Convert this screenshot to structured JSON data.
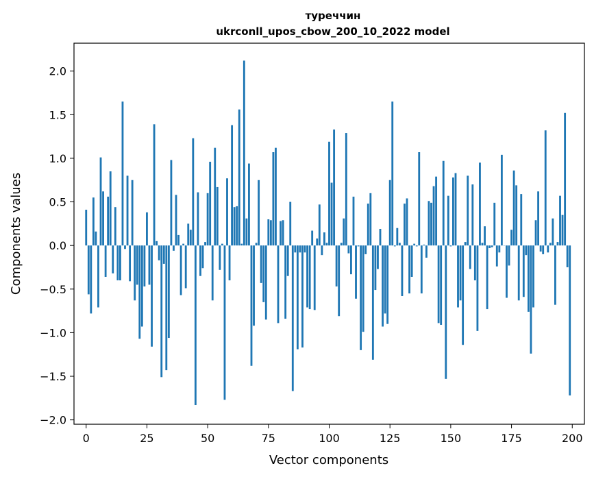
{
  "chart_data": {
    "type": "bar",
    "title": "туреччин",
    "subtitle": "ukrconll_upos_cbow_200_10_2022 model",
    "xlabel": "Vector components",
    "ylabel": "Components values",
    "xlim": [
      -5,
      205
    ],
    "ylim": [
      -2.05,
      2.32
    ],
    "xticks": [
      0,
      25,
      50,
      75,
      100,
      125,
      150,
      175,
      200
    ],
    "yticks": [
      -2.0,
      -1.5,
      -1.0,
      -0.5,
      0.0,
      0.5,
      1.0,
      1.5,
      2.0
    ],
    "ytick_labels": [
      "−2.0",
      "−1.5",
      "−1.0",
      "−0.5",
      "0.0",
      "0.5",
      "1.0",
      "1.5",
      "2.0"
    ],
    "bar_color": "#1f77b4",
    "values": [
      0.41,
      -0.56,
      -0.78,
      0.55,
      0.16,
      -0.71,
      1.01,
      0.62,
      -0.36,
      0.56,
      0.85,
      -0.32,
      0.44,
      -0.4,
      -0.4,
      1.65,
      -0.04,
      0.8,
      -0.41,
      0.75,
      -0.63,
      -0.45,
      -1.07,
      -0.93,
      -0.47,
      0.38,
      -0.45,
      -1.16,
      1.39,
      0.05,
      -0.17,
      -1.51,
      -0.21,
      -1.43,
      -1.06,
      0.98,
      -0.06,
      0.58,
      0.12,
      -0.57,
      0.02,
      -0.49,
      0.25,
      0.18,
      1.23,
      -1.83,
      0.61,
      -0.35,
      -0.26,
      0.04,
      0.6,
      0.96,
      -0.63,
      1.12,
      0.67,
      -0.28,
      0.02,
      -1.77,
      0.77,
      -0.4,
      1.38,
      0.44,
      0.45,
      1.56,
      0.02,
      2.12,
      0.31,
      0.94,
      -1.38,
      -0.92,
      0.03,
      0.75,
      -0.43,
      -0.65,
      -0.85,
      0.3,
      0.29,
      1.07,
      1.12,
      -0.89,
      0.28,
      0.29,
      -0.84,
      -0.35,
      0.5,
      -1.67,
      -0.08,
      -1.19,
      -0.08,
      -1.17,
      -0.08,
      -0.71,
      -0.73,
      0.17,
      -0.74,
      0.08,
      0.47,
      -0.11,
      0.15,
      0.03,
      1.19,
      0.72,
      1.33,
      -0.47,
      -0.81,
      0.03,
      0.31,
      1.29,
      -0.09,
      -0.33,
      0.56,
      -0.61,
      -0.01,
      -1.2,
      -0.99,
      -0.1,
      0.48,
      0.6,
      -1.31,
      -0.51,
      -0.27,
      0.19,
      -0.93,
      -0.78,
      -0.9,
      0.75,
      1.65,
      -0.01,
      0.2,
      0.03,
      -0.58,
      0.48,
      0.54,
      -0.55,
      -0.36,
      0.02,
      -0.01,
      1.07,
      -0.55,
      0.01,
      -0.14,
      0.51,
      0.49,
      0.68,
      0.79,
      -0.89,
      -0.91,
      0.97,
      -1.53,
      0.57,
      -0.01,
      0.78,
      0.83,
      -0.71,
      -0.63,
      -1.14,
      0.04,
      0.8,
      -0.27,
      0.7,
      -0.4,
      -0.98,
      0.95,
      0.03,
      0.22,
      -0.73,
      -0.03,
      -0.02,
      0.49,
      -0.24,
      -0.08,
      1.04,
      0.0,
      -0.6,
      -0.23,
      0.18,
      0.86,
      0.69,
      -0.63,
      0.59,
      -0.59,
      -0.11,
      -0.76,
      -1.24,
      -0.71,
      0.29,
      0.62,
      -0.07,
      -0.1,
      1.32,
      -0.08,
      0.03,
      0.31,
      -0.68,
      0.04,
      0.57,
      0.35,
      1.52,
      -0.25,
      -1.72
    ]
  }
}
